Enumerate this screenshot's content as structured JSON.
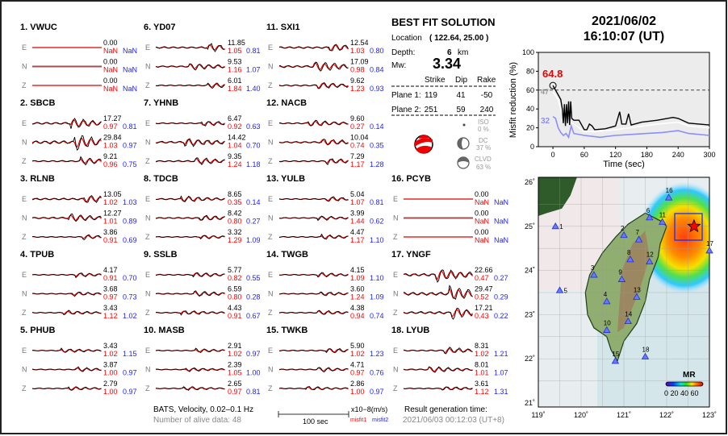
{
  "components": [
    "E",
    "N",
    "Z"
  ],
  "stations": [
    {
      "name": "1.  VWUC",
      "flat": true,
      "rows": [
        [
          "0.00",
          "NaN",
          "NaN"
        ],
        [
          "0.00",
          "NaN",
          "NaN"
        ],
        [
          "0.00",
          "NaN",
          "NaN"
        ]
      ]
    },
    {
      "name": "2.  SBCB",
      "rows": [
        [
          "17.27",
          "0.97",
          "0.81"
        ],
        [
          "29.84",
          "1.03",
          "0.97"
        ],
        [
          "9.21",
          "0.96",
          "0.75"
        ]
      ]
    },
    {
      "name": "3.  RLNB",
      "rows": [
        [
          "13.05",
          "1.02",
          "1.03"
        ],
        [
          "12.27",
          "1.01",
          "0.89"
        ],
        [
          "3.86",
          "0.91",
          "0.69"
        ]
      ]
    },
    {
      "name": "4.  TPUB",
      "rows": [
        [
          "4.17",
          "0.91",
          "0.70"
        ],
        [
          "3.68",
          "0.97",
          "0.73"
        ],
        [
          "3.43",
          "1.12",
          "1.02"
        ]
      ]
    },
    {
      "name": "5.  PHUB",
      "rows": [
        [
          "3.43",
          "1.02",
          "1.15"
        ],
        [
          "3.87",
          "1.00",
          "0.97"
        ],
        [
          "2.79",
          "1.00",
          "0.97"
        ]
      ]
    },
    {
      "name": "6.  YD07",
      "rows": [
        [
          "11.85",
          "1.05",
          "0.81"
        ],
        [
          "9.53",
          "1.16",
          "1.07"
        ],
        [
          "6.01",
          "1.84",
          "1.40"
        ]
      ]
    },
    {
      "name": "7.  YHNB",
      "rows": [
        [
          "6.47",
          "0.92",
          "0.63"
        ],
        [
          "14.42",
          "1.04",
          "0.70"
        ],
        [
          "9.35",
          "1.24",
          "1.18"
        ]
      ]
    },
    {
      "name": "8.  TDCB",
      "rows": [
        [
          "8.65",
          "0.35",
          "0.14"
        ],
        [
          "8.42",
          "0.80",
          "0.27"
        ],
        [
          "3.32",
          "1.29",
          "1.09"
        ]
      ]
    },
    {
      "name": "9.  SSLB",
      "rows": [
        [
          "5.77",
          "0.82",
          "0.55"
        ],
        [
          "6.59",
          "0.80",
          "0.28"
        ],
        [
          "4.43",
          "0.91",
          "0.67"
        ]
      ]
    },
    {
      "name": "10. MASB",
      "rows": [
        [
          "2.91",
          "1.02",
          "0.97"
        ],
        [
          "2.39",
          "1.05",
          "1.00"
        ],
        [
          "2.65",
          "0.97",
          "0.81"
        ]
      ]
    },
    {
      "name": "11. SXI1",
      "rows": [
        [
          "12.54",
          "1.03",
          "0.80"
        ],
        [
          "17.09",
          "0.98",
          "0.84"
        ],
        [
          "9.62",
          "1.23",
          "0.93"
        ]
      ]
    },
    {
      "name": "12. NACB",
      "rows": [
        [
          "9.60",
          "0.27",
          "0.14"
        ],
        [
          "10.04",
          "0.74",
          "0.35"
        ],
        [
          "7.29",
          "1.17",
          "1.28"
        ]
      ]
    },
    {
      "name": "13. YULB",
      "rows": [
        [
          "5.04",
          "1.07",
          "0.81"
        ],
        [
          "3.99",
          "1.44",
          "0.62"
        ],
        [
          "4.47",
          "1.17",
          "1.10"
        ]
      ]
    },
    {
      "name": "14. TWGB",
      "rows": [
        [
          "4.15",
          "1.09",
          "1.10"
        ],
        [
          "3.60",
          "1.24",
          "1.09"
        ],
        [
          "4.38",
          "0.94",
          "0.74"
        ]
      ]
    },
    {
      "name": "15. TWKB",
      "rows": [
        [
          "5.90",
          "1.02",
          "1.23"
        ],
        [
          "4.71",
          "0.97",
          "0.76"
        ],
        [
          "2.86",
          "1.00",
          "0.97"
        ]
      ]
    },
    {
      "name": "16. PCYB",
      "flat": true,
      "rows": [
        [
          "0.00",
          "NaN",
          "NaN"
        ],
        [
          "0.00",
          "NaN",
          "NaN"
        ],
        [
          "0.00",
          "NaN",
          "NaN"
        ]
      ]
    },
    {
      "name": "17. YNGF",
      "rows": [
        [
          "22.66",
          "0.47",
          "0.27"
        ],
        [
          "29.47",
          "0.52",
          "0.29"
        ],
        [
          "17.21",
          "0.43",
          "0.22"
        ]
      ]
    },
    {
      "name": "18. LYUB",
      "rows": [
        [
          "8.31",
          "1.02",
          "1.21"
        ],
        [
          "8.01",
          "1.01",
          "1.07"
        ],
        [
          "3.61",
          "1.12",
          "1.31"
        ]
      ]
    }
  ],
  "solution": {
    "title": "BEST FIT SOLUTION",
    "location_label": "Location",
    "location_value": "( 122.64,  25.00 )",
    "depth_label": "Depth:",
    "depth_value": "6",
    "depth_unit": "km",
    "mw_label": "Mw:",
    "mw_value": "3.34",
    "headers": [
      "Strike",
      "Dip",
      "Rake"
    ],
    "planes": [
      {
        "label": "Plane 1:",
        "strike": "119",
        "dip": "41",
        "rake": "-50"
      },
      {
        "label": "Plane 2:",
        "strike": "251",
        "dip": "59",
        "rake": "240"
      }
    ],
    "iso_label": "ISO",
    "iso_value": "0 %",
    "dc_label": "DC",
    "dc_value": "37 %",
    "clvd_label": "CLVD",
    "clvd_value": "63 %"
  },
  "footer": {
    "network": "BATS, Velocity, 0.02–0.1 Hz",
    "alive": "Number of alive data: 48",
    "scale_label": "100 sec",
    "unit": "x10−8(m/s)",
    "misfit1": "misfit1",
    "misfit2": "misfit2",
    "gen_label": "Result generation time:",
    "gen_time": "2021/06/03 00:12:03 (UT+8)"
  },
  "chart_data": {
    "type": "line",
    "title": "2021/06/02",
    "subtitle": "16:10:07  (UT)",
    "xlabel": "Time (sec)",
    "ylabel": "Misfit reduction (%)",
    "xlim": [
      -28,
      300
    ],
    "ylim": [
      0,
      100
    ],
    "xticks": [
      0,
      60,
      120,
      180,
      240,
      300
    ],
    "yticks": [
      0,
      20,
      40,
      60,
      80,
      100
    ],
    "reference_line": 60,
    "peak_label": "64.8",
    "label_gray": "47",
    "label_blue": "32",
    "series": [
      {
        "name": "MR",
        "color": "#000000",
        "x": [
          0,
          5,
          10,
          15,
          18,
          20,
          22,
          24,
          26,
          28,
          30,
          32,
          34,
          36,
          40,
          50,
          60,
          65,
          70,
          75,
          80,
          100,
          120,
          128,
          132,
          140,
          145,
          150,
          170,
          200,
          230,
          240,
          260,
          280,
          300
        ],
        "y": [
          64.8,
          60,
          55,
          50,
          40,
          25,
          45,
          22,
          45,
          25,
          48,
          23,
          48,
          30,
          28,
          28,
          18,
          18,
          24,
          22,
          18,
          19,
          22,
          37,
          24,
          24,
          35,
          23,
          26,
          28,
          31,
          30,
          25,
          24,
          23
        ]
      },
      {
        "name": "MR-white",
        "color": "#ffffff",
        "x": [
          0,
          10,
          20,
          40,
          60,
          80,
          120,
          160,
          200,
          240,
          260,
          300
        ],
        "y": [
          58,
          50,
          30,
          24,
          16,
          16,
          18,
          21,
          24,
          26,
          22,
          20
        ]
      },
      {
        "name": "MR2",
        "color": "#8c8cff",
        "x": [
          0,
          5,
          10,
          15,
          20,
          25,
          30,
          35,
          40,
          60,
          90,
          120,
          150,
          180,
          210,
          240,
          260,
          300
        ],
        "y": [
          32,
          30,
          20,
          15,
          12,
          14,
          10,
          22,
          14,
          12,
          10,
          12,
          13,
          14,
          15,
          17,
          14,
          12
        ]
      }
    ]
  },
  "map": {
    "lon_ticks": [
      "119˚",
      "120˚",
      "121˚",
      "122˚",
      "123˚"
    ],
    "lat_ticks": [
      "21˚",
      "22˚",
      "23˚",
      "24˚",
      "25˚",
      "26˚"
    ],
    "epicenter": [
      122.64,
      25.0
    ],
    "colorbar_title": "MR",
    "colorbar_ticks": "0 20 40 60",
    "stations": [
      {
        "id": "1",
        "lon": 119.4,
        "lat": 25.0
      },
      {
        "id": "2",
        "lon": 121.0,
        "lat": 24.8
      },
      {
        "id": "3",
        "lon": 120.3,
        "lat": 23.9
      },
      {
        "id": "4",
        "lon": 120.6,
        "lat": 23.3
      },
      {
        "id": "5",
        "lon": 119.5,
        "lat": 23.55
      },
      {
        "id": "6",
        "lon": 121.6,
        "lat": 25.2
      },
      {
        "id": "7",
        "lon": 121.35,
        "lat": 24.7
      },
      {
        "id": "8",
        "lon": 121.15,
        "lat": 24.25
      },
      {
        "id": "9",
        "lon": 120.95,
        "lat": 23.8
      },
      {
        "id": "10",
        "lon": 120.6,
        "lat": 22.65
      },
      {
        "id": "11",
        "lon": 121.9,
        "lat": 25.1
      },
      {
        "id": "12",
        "lon": 121.6,
        "lat": 24.2
      },
      {
        "id": "13",
        "lon": 121.3,
        "lat": 23.4
      },
      {
        "id": "14",
        "lon": 121.1,
        "lat": 22.85
      },
      {
        "id": "15",
        "lon": 120.8,
        "lat": 21.95
      },
      {
        "id": "16",
        "lon": 122.05,
        "lat": 25.65
      },
      {
        "id": "17",
        "lon": 123.0,
        "lat": 24.45
      },
      {
        "id": "18",
        "lon": 121.5,
        "lat": 22.05
      }
    ]
  }
}
